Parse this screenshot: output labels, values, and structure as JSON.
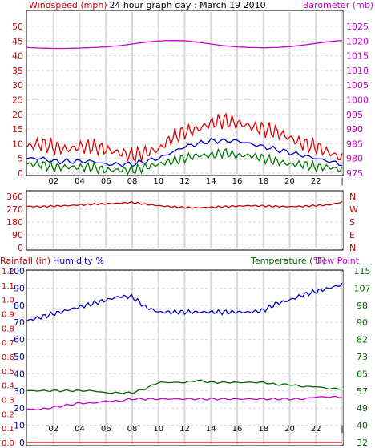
{
  "page_title": "24 hour graph day : March 19 2010",
  "colors": {
    "windspeed": "#cc0000",
    "gust": "#e00000",
    "wind_avg": "#0000cc",
    "wind_low": "#007700",
    "barometer": "#cc00cc",
    "direction": "#cc0000",
    "humidity": "#0000bb",
    "temperature": "#006600",
    "dewpoint": "#cc00cc",
    "rainfall": "#cc0000",
    "grid": "#d8d8d8",
    "frame": "#000000"
  },
  "chart_data": [
    {
      "type": "line",
      "ylabel_left": "Windspeed (mph)",
      "ylabel_right": "Barometer (mb)",
      "left_ticks": [
        "50",
        "45",
        "40",
        "35",
        "30",
        "25",
        "20",
        "15",
        "10",
        "5",
        "0"
      ],
      "right_ticks": [
        "1025",
        "1020",
        "1015",
        "1010",
        "1005",
        "1000",
        "995",
        "990",
        "985",
        "980",
        "975"
      ],
      "x_ticks": [
        "02",
        "04",
        "06",
        "08",
        "10",
        "12",
        "14",
        "16",
        "18",
        "20",
        "22",
        "|"
      ],
      "ylim_left": [
        0,
        50
      ],
      "ylim_right": [
        975,
        1025
      ],
      "x": [
        0,
        1,
        2,
        3,
        4,
        5,
        6,
        7,
        8,
        9,
        10,
        11,
        12,
        13,
        14,
        15,
        16,
        17,
        18,
        19,
        20,
        21,
        22,
        23,
        24
      ],
      "series": [
        {
          "key": "gust",
          "values": [
            9,
            10,
            9,
            8,
            9,
            9,
            8,
            7,
            6,
            7,
            8,
            12,
            14,
            15,
            17,
            18,
            17,
            16,
            15,
            14,
            12,
            10,
            9,
            7,
            5
          ]
        },
        {
          "key": "wind_avg",
          "values": [
            5,
            5,
            4,
            4,
            4,
            4,
            3,
            3,
            3,
            4,
            5,
            7,
            9,
            10,
            11,
            11,
            11,
            10,
            9,
            8,
            7,
            6,
            5,
            4,
            3
          ]
        },
        {
          "key": "wind_low",
          "values": [
            3,
            3,
            2,
            2,
            2,
            2,
            1,
            1,
            1,
            2,
            3,
            4,
            5,
            6,
            6,
            7,
            6,
            6,
            5,
            4,
            3,
            3,
            2,
            2,
            1
          ]
        },
        {
          "key": "barometer",
          "values": [
            1017.8,
            1017.6,
            1017.5,
            1017.5,
            1017.6,
            1017.8,
            1018.0,
            1018.4,
            1019.0,
            1019.6,
            1020.0,
            1020.2,
            1020.1,
            1019.6,
            1019.0,
            1018.4,
            1018.0,
            1017.8,
            1017.7,
            1017.8,
            1018.1,
            1018.6,
            1019.2,
            1019.8,
            1020.2
          ]
        }
      ]
    },
    {
      "type": "line",
      "direction_ticks": [
        "360",
        "270",
        "180",
        "90",
        "0"
      ],
      "direction_letters": [
        "N",
        "W",
        "S",
        "E",
        "N"
      ],
      "ylim": [
        0,
        360
      ],
      "x": [
        0,
        1,
        2,
        3,
        4,
        5,
        6,
        7,
        8,
        9,
        10,
        11,
        12,
        13,
        14,
        15,
        16,
        17,
        18,
        19,
        20,
        21,
        22,
        23,
        24
      ],
      "series": [
        {
          "key": "direction",
          "values": [
            290,
            288,
            292,
            295,
            300,
            305,
            308,
            312,
            318,
            305,
            295,
            288,
            282,
            280,
            284,
            288,
            292,
            295,
            293,
            290,
            288,
            290,
            296,
            300,
            320
          ]
        }
      ]
    },
    {
      "type": "line",
      "ylabel_rain": "Rainfall (in)",
      "ylabel_humidity": "Humidity %",
      "ylabel_temp": "Temperature (°F)",
      "ylabel_dew": "Dew Point",
      "rain_ticks": [
        "1.2",
        "1.1",
        "1.0",
        "0.9",
        "0.8",
        "0.7",
        "0.6",
        "0.5",
        "0.4",
        "0.3",
        "0.2",
        "0.1",
        "0.0"
      ],
      "humidity_ticks": [
        "100",
        "90",
        "80",
        "70",
        "60",
        "50",
        "40",
        "30",
        "20",
        "10",
        "0"
      ],
      "temp_ticks": [
        "115",
        "107",
        "98",
        "90",
        "82",
        "73",
        "65",
        "57",
        "49",
        "40",
        "32"
      ],
      "x_ticks": [
        "02",
        "04",
        "06",
        "08",
        "10",
        "12",
        "14",
        "16",
        "18",
        "20",
        "22",
        "|"
      ],
      "ylim_rain": [
        0,
        1.2
      ],
      "ylim_humidity": [
        0,
        100
      ],
      "ylim_temp": [
        32,
        115
      ],
      "x": [
        0,
        1,
        2,
        3,
        4,
        5,
        6,
        7,
        8,
        9,
        10,
        11,
        12,
        13,
        14,
        15,
        16,
        17,
        18,
        19,
        20,
        21,
        22,
        23,
        24
      ],
      "series": [
        {
          "key": "humidity",
          "values": [
            71,
            73,
            75,
            77,
            79,
            81,
            83,
            85,
            85,
            79,
            76,
            76,
            76,
            76,
            76,
            76,
            76,
            76,
            77,
            81,
            83,
            86,
            88,
            90,
            92
          ]
        },
        {
          "key": "temperature",
          "values": [
            57,
            57,
            57,
            57,
            57,
            57,
            56,
            56,
            56,
            58,
            61,
            61,
            61,
            62,
            61,
            61,
            61,
            61,
            61,
            60,
            60,
            59,
            59,
            58,
            58
          ]
        },
        {
          "key": "dewpoint",
          "values": [
            48,
            48,
            49,
            50,
            51,
            51,
            52,
            52,
            53,
            53,
            53,
            53,
            53,
            53,
            53,
            53,
            53,
            53,
            53,
            53,
            53,
            53,
            54,
            54,
            54
          ]
        },
        {
          "key": "rainfall",
          "values": [
            0,
            0,
            0,
            0,
            0,
            0,
            0,
            0,
            0,
            0,
            0,
            0,
            0,
            0,
            0,
            0,
            0,
            0,
            0,
            0,
            0,
            0,
            0,
            0,
            0
          ]
        }
      ]
    }
  ]
}
